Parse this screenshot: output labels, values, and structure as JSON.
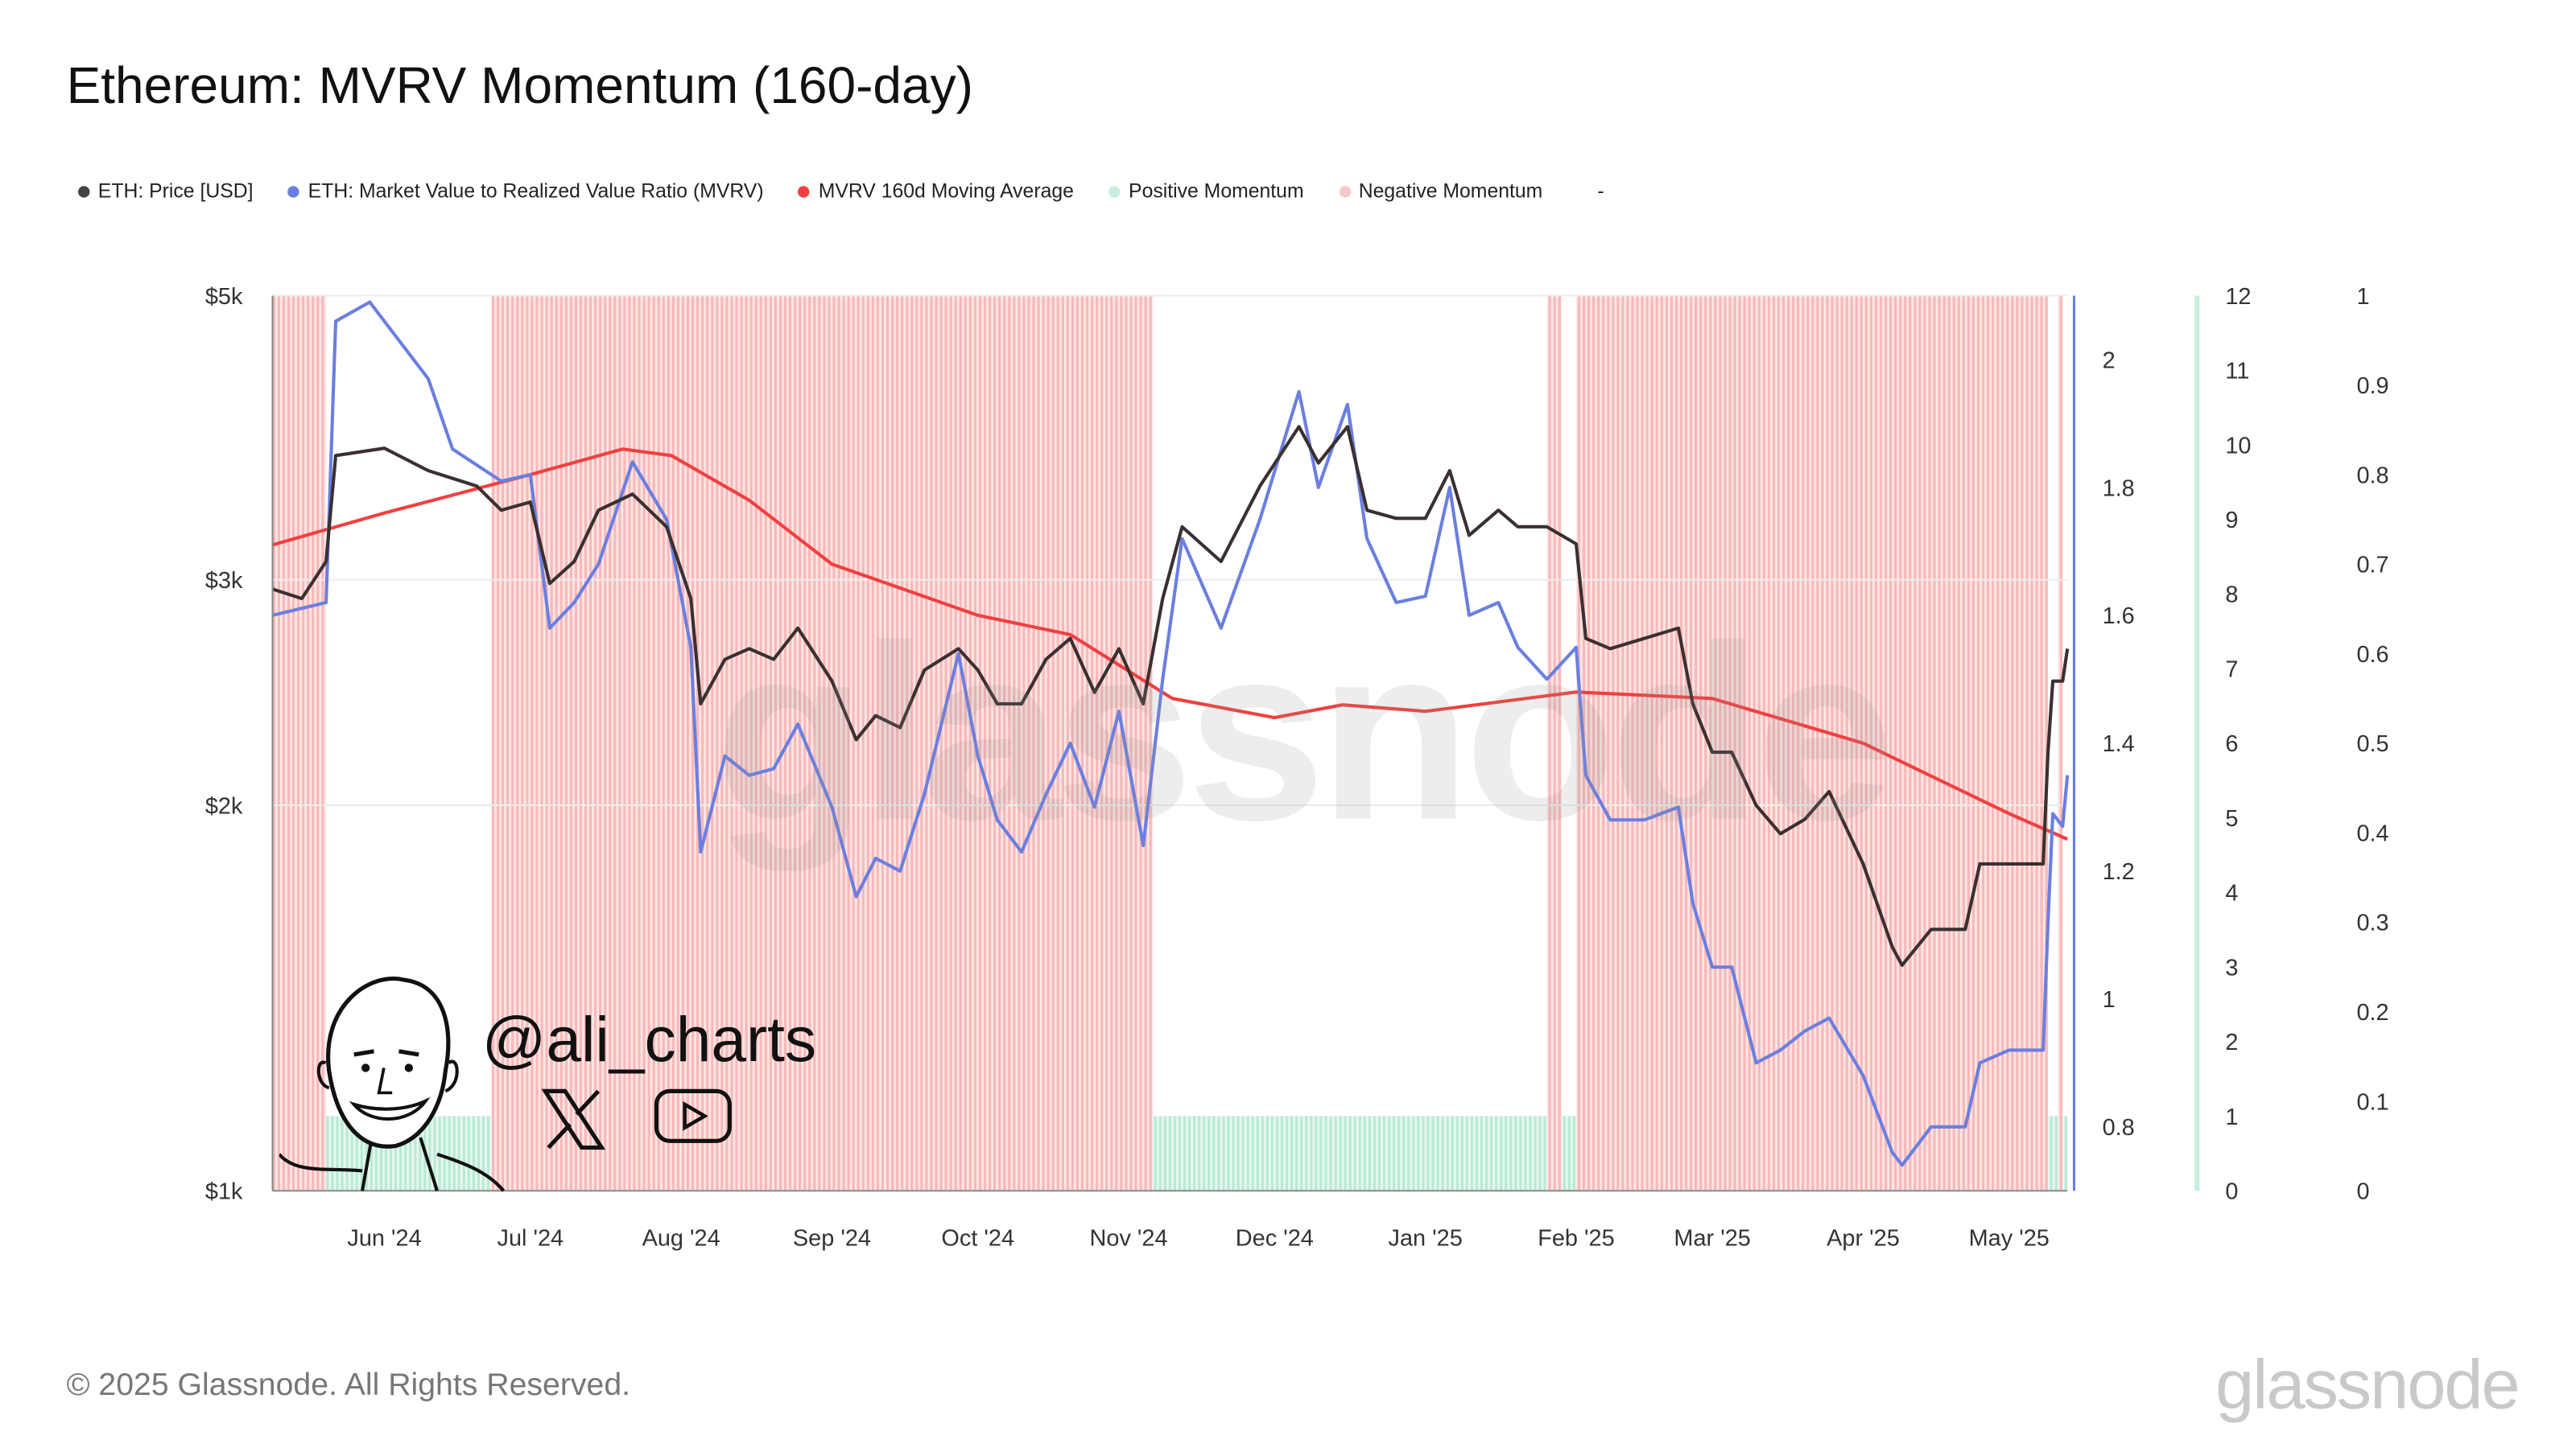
{
  "title": "Ethereum: MVRV Momentum (160-day)",
  "legend": [
    {
      "label": "ETH: Price [USD]",
      "color": "#444444"
    },
    {
      "label": "ETH: Market Value to Realized Value Ratio (MVRV)",
      "color": "#6b7fe0"
    },
    {
      "label": "MVRV 160d Moving Average",
      "color": "#f04040"
    },
    {
      "label": "Positive Momentum",
      "color": "#c6eedd"
    },
    {
      "label": "Negative Momentum",
      "color": "#f8c8c8"
    },
    {
      "label": "-",
      "color": ""
    }
  ],
  "watermark": "glassnode",
  "author": {
    "handle": "@ali_charts",
    "icons": [
      "x-logo-icon",
      "youtube-icon"
    ]
  },
  "footer": {
    "copyright": "© 2025 Glassnode. All Rights Reserved.",
    "brand": "glassnode"
  },
  "chart_data": {
    "type": "line",
    "title": "Ethereum: MVRV Momentum (160-day)",
    "x_range": [
      "2024-05-09",
      "2025-05-13"
    ],
    "x_ticks": [
      {
        "date": "2024-06-01",
        "label": "Jun '24"
      },
      {
        "date": "2024-07-01",
        "label": "Jul '24"
      },
      {
        "date": "2024-08-01",
        "label": "Aug '24"
      },
      {
        "date": "2024-09-01",
        "label": "Sep '24"
      },
      {
        "date": "2024-10-01",
        "label": "Oct '24"
      },
      {
        "date": "2024-11-01",
        "label": "Nov '24"
      },
      {
        "date": "2024-12-01",
        "label": "Dec '24"
      },
      {
        "date": "2025-01-01",
        "label": "Jan '25"
      },
      {
        "date": "2025-02-01",
        "label": "Feb '25"
      },
      {
        "date": "2025-03-01",
        "label": "Mar '25"
      },
      {
        "date": "2025-04-01",
        "label": "Apr '25"
      },
      {
        "date": "2025-05-01",
        "label": "May '25"
      }
    ],
    "axes": {
      "price": {
        "scale": "log",
        "range": [
          1000,
          5000
        ],
        "ticks": [
          {
            "v": 1000,
            "label": "$1k"
          },
          {
            "v": 2000,
            "label": "$2k"
          },
          {
            "v": 3000,
            "label": "$3k"
          },
          {
            "v": 5000,
            "label": "$5k"
          }
        ]
      },
      "mvrv": {
        "scale": "linear",
        "range": [
          0.7,
          2.1
        ],
        "ticks": [
          {
            "v": 0.8,
            "label": "0.8"
          },
          {
            "v": 1,
            "label": "1"
          },
          {
            "v": 1.2,
            "label": "1.2"
          },
          {
            "v": 1.4,
            "label": "1.4"
          },
          {
            "v": 1.6,
            "label": "1.6"
          },
          {
            "v": 1.8,
            "label": "1.8"
          },
          {
            "v": 2,
            "label": "2"
          }
        ]
      },
      "positive": {
        "scale": "linear",
        "range": [
          0,
          12
        ],
        "ticks": [
          "0",
          "1",
          "2",
          "3",
          "4",
          "5",
          "6",
          "7",
          "8",
          "9",
          "10",
          "11",
          "12"
        ]
      },
      "negative": {
        "scale": "linear",
        "range": [
          0,
          1
        ],
        "ticks": [
          "0",
          "0.1",
          "0.2",
          "0.3",
          "0.4",
          "0.5",
          "0.6",
          "0.7",
          "0.8",
          "0.9",
          "1"
        ]
      }
    },
    "grid": true,
    "legend_position": "top",
    "series": [
      {
        "name": "ETH: Price [USD]",
        "axis": "price",
        "color": "#3a3030",
        "points": [
          [
            "2024-05-09",
            2950
          ],
          [
            "2024-05-15",
            2900
          ],
          [
            "2024-05-20",
            3100
          ],
          [
            "2024-05-22",
            3750
          ],
          [
            "2024-06-01",
            3800
          ],
          [
            "2024-06-10",
            3650
          ],
          [
            "2024-06-20",
            3550
          ],
          [
            "2024-06-25",
            3400
          ],
          [
            "2024-07-01",
            3450
          ],
          [
            "2024-07-05",
            2980
          ],
          [
            "2024-07-10",
            3100
          ],
          [
            "2024-07-15",
            3400
          ],
          [
            "2024-07-22",
            3500
          ],
          [
            "2024-07-29",
            3300
          ],
          [
            "2024-08-03",
            2900
          ],
          [
            "2024-08-05",
            2400
          ],
          [
            "2024-08-10",
            2600
          ],
          [
            "2024-08-15",
            2650
          ],
          [
            "2024-08-20",
            2600
          ],
          [
            "2024-08-25",
            2750
          ],
          [
            "2024-09-01",
            2500
          ],
          [
            "2024-09-06",
            2250
          ],
          [
            "2024-09-10",
            2350
          ],
          [
            "2024-09-15",
            2300
          ],
          [
            "2024-09-20",
            2550
          ],
          [
            "2024-09-27",
            2650
          ],
          [
            "2024-10-01",
            2550
          ],
          [
            "2024-10-05",
            2400
          ],
          [
            "2024-10-10",
            2400
          ],
          [
            "2024-10-15",
            2600
          ],
          [
            "2024-10-20",
            2700
          ],
          [
            "2024-10-25",
            2450
          ],
          [
            "2024-10-30",
            2650
          ],
          [
            "2024-11-04",
            2400
          ],
          [
            "2024-11-08",
            2900
          ],
          [
            "2024-11-12",
            3300
          ],
          [
            "2024-11-20",
            3100
          ],
          [
            "2024-11-28",
            3550
          ],
          [
            "2024-12-06",
            3950
          ],
          [
            "2024-12-10",
            3700
          ],
          [
            "2024-12-16",
            3950
          ],
          [
            "2024-12-20",
            3400
          ],
          [
            "2024-12-26",
            3350
          ],
          [
            "2025-01-01",
            3350
          ],
          [
            "2025-01-06",
            3650
          ],
          [
            "2025-01-10",
            3250
          ],
          [
            "2025-01-16",
            3400
          ],
          [
            "2025-01-20",
            3300
          ],
          [
            "2025-01-26",
            3300
          ],
          [
            "2025-02-01",
            3200
          ],
          [
            "2025-02-03",
            2700
          ],
          [
            "2025-02-08",
            2650
          ],
          [
            "2025-02-15",
            2700
          ],
          [
            "2025-02-22",
            2750
          ],
          [
            "2025-02-25",
            2400
          ],
          [
            "2025-03-01",
            2200
          ],
          [
            "2025-03-05",
            2200
          ],
          [
            "2025-03-10",
            2000
          ],
          [
            "2025-03-15",
            1900
          ],
          [
            "2025-03-20",
            1950
          ],
          [
            "2025-03-25",
            2050
          ],
          [
            "2025-04-01",
            1800
          ],
          [
            "2025-04-07",
            1550
          ],
          [
            "2025-04-09",
            1500
          ],
          [
            "2025-04-15",
            1600
          ],
          [
            "2025-04-22",
            1600
          ],
          [
            "2025-04-25",
            1800
          ],
          [
            "2025-05-01",
            1800
          ],
          [
            "2025-05-08",
            1800
          ],
          [
            "2025-05-09",
            2200
          ],
          [
            "2025-05-10",
            2500
          ],
          [
            "2025-05-12",
            2500
          ],
          [
            "2025-05-13",
            2650
          ]
        ]
      },
      {
        "name": "ETH: Market Value to Realized Value Ratio (MVRV)",
        "axis": "mvrv",
        "color": "#6b7fe0",
        "points": [
          [
            "2024-05-09",
            1.6
          ],
          [
            "2024-05-20",
            1.62
          ],
          [
            "2024-05-22",
            2.06
          ],
          [
            "2024-05-29",
            2.09
          ],
          [
            "2024-06-05",
            2.02
          ],
          [
            "2024-06-10",
            1.97
          ],
          [
            "2024-06-15",
            1.86
          ],
          [
            "2024-06-25",
            1.81
          ],
          [
            "2024-07-01",
            1.82
          ],
          [
            "2024-07-05",
            1.58
          ],
          [
            "2024-07-10",
            1.62
          ],
          [
            "2024-07-15",
            1.68
          ],
          [
            "2024-07-22",
            1.84
          ],
          [
            "2024-07-29",
            1.75
          ],
          [
            "2024-08-03",
            1.55
          ],
          [
            "2024-08-05",
            1.23
          ],
          [
            "2024-08-10",
            1.38
          ],
          [
            "2024-08-15",
            1.35
          ],
          [
            "2024-08-20",
            1.36
          ],
          [
            "2024-08-25",
            1.43
          ],
          [
            "2024-09-01",
            1.3
          ],
          [
            "2024-09-06",
            1.16
          ],
          [
            "2024-09-10",
            1.22
          ],
          [
            "2024-09-15",
            1.2
          ],
          [
            "2024-09-20",
            1.32
          ],
          [
            "2024-09-27",
            1.54
          ],
          [
            "2024-10-01",
            1.38
          ],
          [
            "2024-10-05",
            1.28
          ],
          [
            "2024-10-10",
            1.23
          ],
          [
            "2024-10-15",
            1.32
          ],
          [
            "2024-10-20",
            1.4
          ],
          [
            "2024-10-25",
            1.3
          ],
          [
            "2024-10-30",
            1.45
          ],
          [
            "2024-11-04",
            1.24
          ],
          [
            "2024-11-08",
            1.5
          ],
          [
            "2024-11-12",
            1.72
          ],
          [
            "2024-11-20",
            1.58
          ],
          [
            "2024-11-28",
            1.75
          ],
          [
            "2024-12-06",
            1.95
          ],
          [
            "2024-12-10",
            1.8
          ],
          [
            "2024-12-16",
            1.93
          ],
          [
            "2024-12-20",
            1.72
          ],
          [
            "2024-12-26",
            1.62
          ],
          [
            "2025-01-01",
            1.63
          ],
          [
            "2025-01-06",
            1.8
          ],
          [
            "2025-01-10",
            1.6
          ],
          [
            "2025-01-16",
            1.62
          ],
          [
            "2025-01-20",
            1.55
          ],
          [
            "2025-01-26",
            1.5
          ],
          [
            "2025-02-01",
            1.55
          ],
          [
            "2025-02-03",
            1.35
          ],
          [
            "2025-02-08",
            1.28
          ],
          [
            "2025-02-15",
            1.28
          ],
          [
            "2025-02-22",
            1.3
          ],
          [
            "2025-02-25",
            1.15
          ],
          [
            "2025-03-01",
            1.05
          ],
          [
            "2025-03-05",
            1.05
          ],
          [
            "2025-03-10",
            0.9
          ],
          [
            "2025-03-15",
            0.92
          ],
          [
            "2025-03-20",
            0.95
          ],
          [
            "2025-03-25",
            0.97
          ],
          [
            "2025-04-01",
            0.88
          ],
          [
            "2025-04-07",
            0.76
          ],
          [
            "2025-04-09",
            0.74
          ],
          [
            "2025-04-15",
            0.8
          ],
          [
            "2025-04-22",
            0.8
          ],
          [
            "2025-04-25",
            0.9
          ],
          [
            "2025-05-01",
            0.92
          ],
          [
            "2025-05-08",
            0.92
          ],
          [
            "2025-05-09",
            1.12
          ],
          [
            "2025-05-10",
            1.29
          ],
          [
            "2025-05-12",
            1.27
          ],
          [
            "2025-05-13",
            1.35
          ]
        ]
      },
      {
        "name": "MVRV 160d Moving Average",
        "axis": "mvrv",
        "color": "#f04040",
        "points": [
          [
            "2024-05-09",
            1.71
          ],
          [
            "2024-06-01",
            1.76
          ],
          [
            "2024-07-01",
            1.82
          ],
          [
            "2024-07-20",
            1.86
          ],
          [
            "2024-07-30",
            1.85
          ],
          [
            "2024-08-15",
            1.78
          ],
          [
            "2024-09-01",
            1.68
          ],
          [
            "2024-10-01",
            1.6
          ],
          [
            "2024-10-20",
            1.57
          ],
          [
            "2024-11-10",
            1.47
          ],
          [
            "2024-12-01",
            1.44
          ],
          [
            "2024-12-15",
            1.46
          ],
          [
            "2025-01-01",
            1.45
          ],
          [
            "2025-02-01",
            1.48
          ],
          [
            "2025-03-01",
            1.47
          ],
          [
            "2025-04-01",
            1.4
          ],
          [
            "2025-04-20",
            1.33
          ],
          [
            "2025-05-01",
            1.29
          ],
          [
            "2025-05-13",
            1.25
          ]
        ]
      }
    ],
    "momentum": {
      "negative": [
        [
          "2024-05-09",
          "2024-05-20"
        ],
        [
          "2024-06-23",
          "2024-11-06"
        ],
        [
          "2025-01-26",
          "2025-01-29"
        ],
        [
          "2025-02-01",
          "2025-05-09"
        ],
        [
          "2025-05-11",
          "2025-05-12"
        ]
      ],
      "positive": [
        [
          "2024-05-20",
          "2024-06-23"
        ],
        [
          "2024-11-06",
          "2025-01-26"
        ],
        [
          "2025-01-29",
          "2025-02-01"
        ],
        [
          "2025-05-09",
          "2025-05-11"
        ],
        [
          "2025-05-12",
          "2025-05-13"
        ]
      ],
      "negative_value": 1,
      "positive_value": 1
    }
  }
}
